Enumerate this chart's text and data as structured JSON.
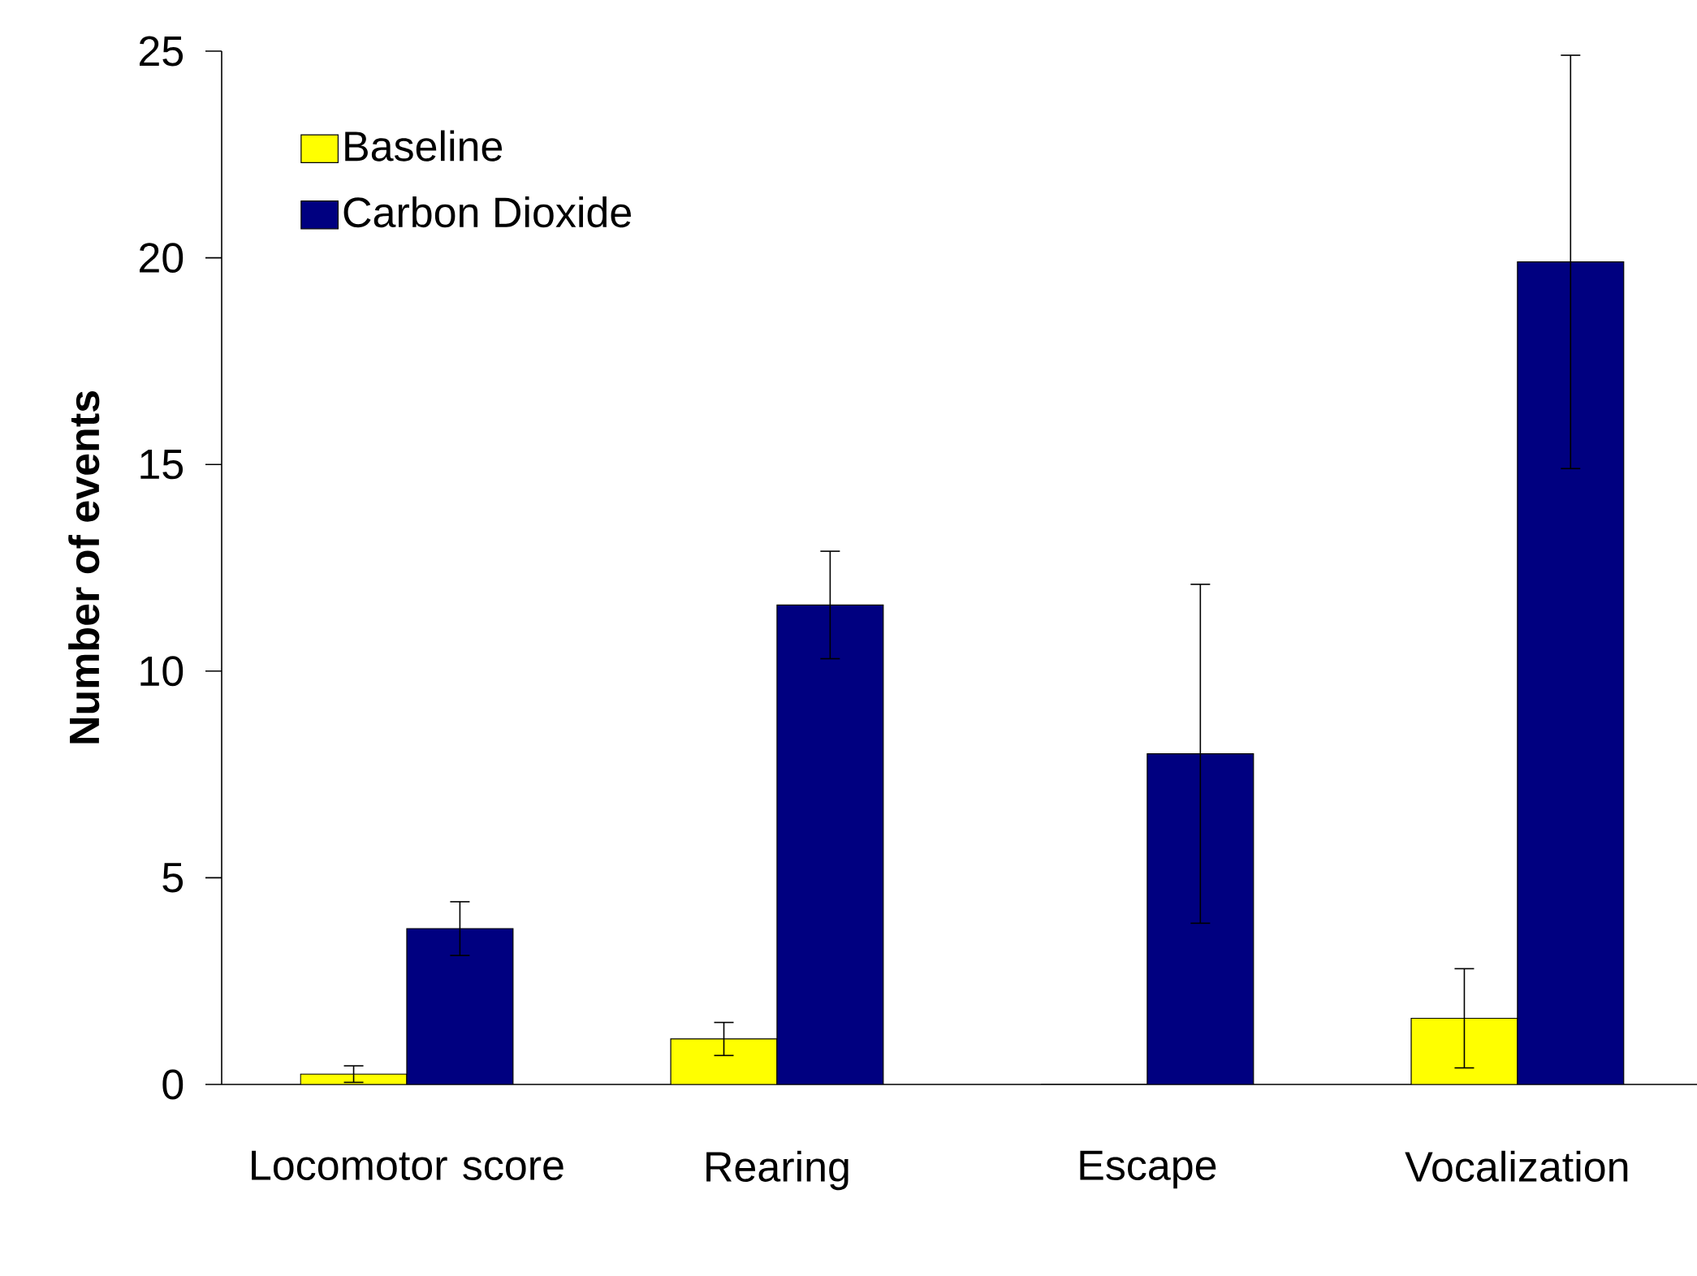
{
  "chart_data": {
    "type": "bar",
    "ylabel": "Number of events",
    "categories": [
      "Locomotor score",
      "Rearing",
      "Escape",
      "Vocalization"
    ],
    "series": [
      {
        "name": "Baseline",
        "color": "#ffff00",
        "values": [
          0.25,
          1.1,
          0,
          1.6
        ],
        "errors": [
          0.2,
          0.4,
          null,
          1.2
        ]
      },
      {
        "name": "Carbon Dioxide",
        "color": "#000080",
        "values": [
          3.77,
          11.6,
          8.0,
          19.9
        ],
        "errors": [
          0.65,
          1.3,
          4.1,
          5.0
        ]
      }
    ],
    "ylim": [
      0,
      25
    ],
    "yticks": [
      0,
      5,
      10,
      15,
      20,
      25
    ],
    "grid": false,
    "legend": "top left"
  }
}
